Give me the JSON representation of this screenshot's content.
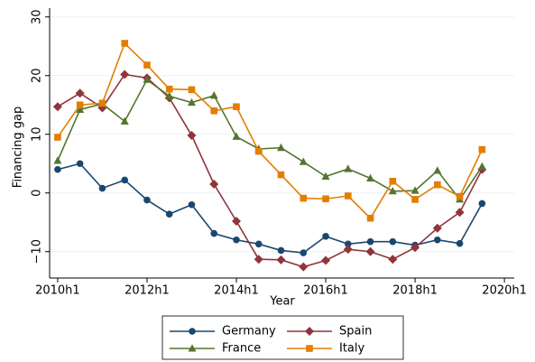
{
  "chart_data": {
    "type": "line",
    "x_label": "Year",
    "y_label": "Financing gap",
    "x": [
      2010,
      2010.5,
      2011,
      2011.5,
      2012,
      2012.5,
      2013,
      2013.5,
      2014,
      2014.5,
      2015,
      2015.5,
      2016,
      2016.5,
      2017,
      2017.5,
      2018,
      2018.5,
      2019,
      2019.5
    ],
    "series": [
      {
        "name": "Germany",
        "color": "#1a476f",
        "marker": "circle",
        "values": [
          4,
          5,
          0.8,
          2.2,
          -1.2,
          -3.6,
          -2,
          -6.9,
          -8,
          -8.7,
          -9.8,
          -10.2,
          -7.4,
          -8.7,
          -8.3,
          -8.3,
          -8.9,
          -8,
          -8.6,
          -1.8
        ]
      },
      {
        "name": "Spain",
        "color": "#90353b",
        "marker": "diamond",
        "values": [
          14.7,
          17,
          14.5,
          20.2,
          19.6,
          16.2,
          9.8,
          1.5,
          -4.8,
          -11.3,
          -11.4,
          -12.6,
          -11.5,
          -9.6,
          -10,
          -11.3,
          -9.3,
          -6,
          -3.3,
          4
        ]
      },
      {
        "name": "France",
        "color": "#55752f",
        "marker": "triangle",
        "values": [
          5.5,
          14.2,
          15.2,
          12.2,
          19.3,
          16.5,
          15.4,
          16.6,
          9.6,
          7.5,
          7.7,
          5.3,
          2.8,
          4.1,
          2.5,
          0.3,
          0.4,
          3.8,
          -1.1,
          4.5
        ]
      },
      {
        "name": "Italy",
        "color": "#e37e00",
        "marker": "square",
        "values": [
          9.5,
          15,
          15.3,
          25.5,
          21.8,
          17.7,
          17.6,
          14,
          14.7,
          7.1,
          3.1,
          -0.9,
          -1,
          -0.5,
          -4.3,
          2,
          -1.1,
          1.4,
          -0.6,
          7.4
        ]
      }
    ],
    "xlim": [
      2009.82,
      2020.22
    ],
    "xticks": [
      {
        "value": 2010,
        "label": "2010h1"
      },
      {
        "value": 2012,
        "label": "2012h1"
      },
      {
        "value": 2014,
        "label": "2014h1"
      },
      {
        "value": 2016,
        "label": "2016h1"
      },
      {
        "value": 2018,
        "label": "2018h1"
      },
      {
        "value": 2020,
        "label": "2020h1"
      }
    ],
    "ylim": [
      -14.5,
      31.5
    ],
    "yticks": [
      {
        "value": -10,
        "label": "−10"
      },
      0,
      10,
      20,
      30
    ],
    "grid": true
  }
}
